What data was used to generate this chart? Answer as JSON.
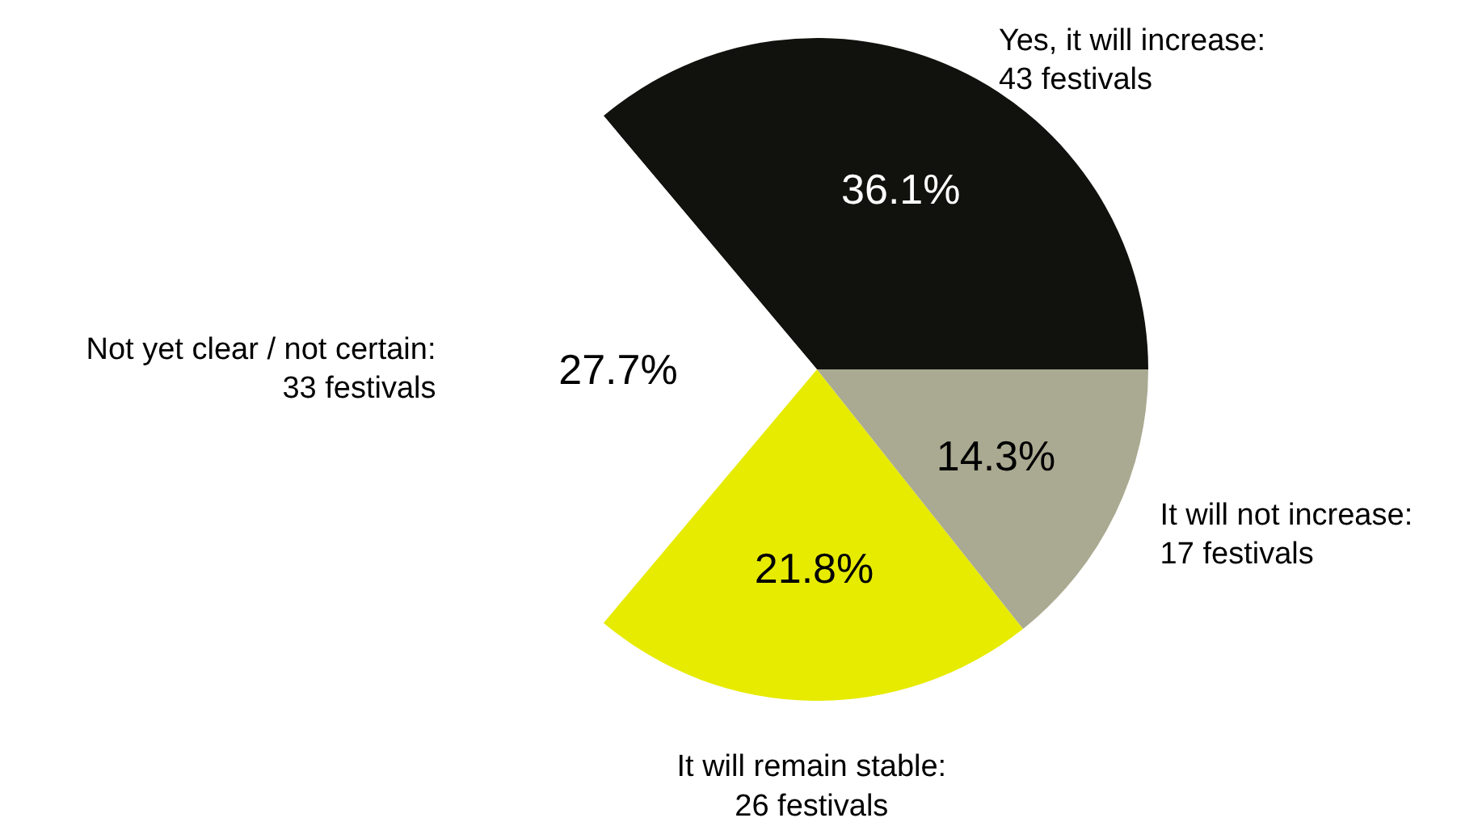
{
  "chart_data": {
    "type": "pie",
    "categories": [
      "Yes, it will increase:\n43 festivals",
      "Not yet clear / not certain:\n33 festivals",
      "It will remain stable:\n26 festivals",
      "It will not increase:\n17 festivals"
    ],
    "values": [
      36.1,
      27.7,
      21.8,
      14.3
    ],
    "colors": [
      "#11110d",
      "#ffffff",
      "#e6eb00",
      "#aaaa92"
    ],
    "value_labels": [
      "36.1%",
      "27.7%",
      "21.8%",
      "14.3%"
    ]
  }
}
